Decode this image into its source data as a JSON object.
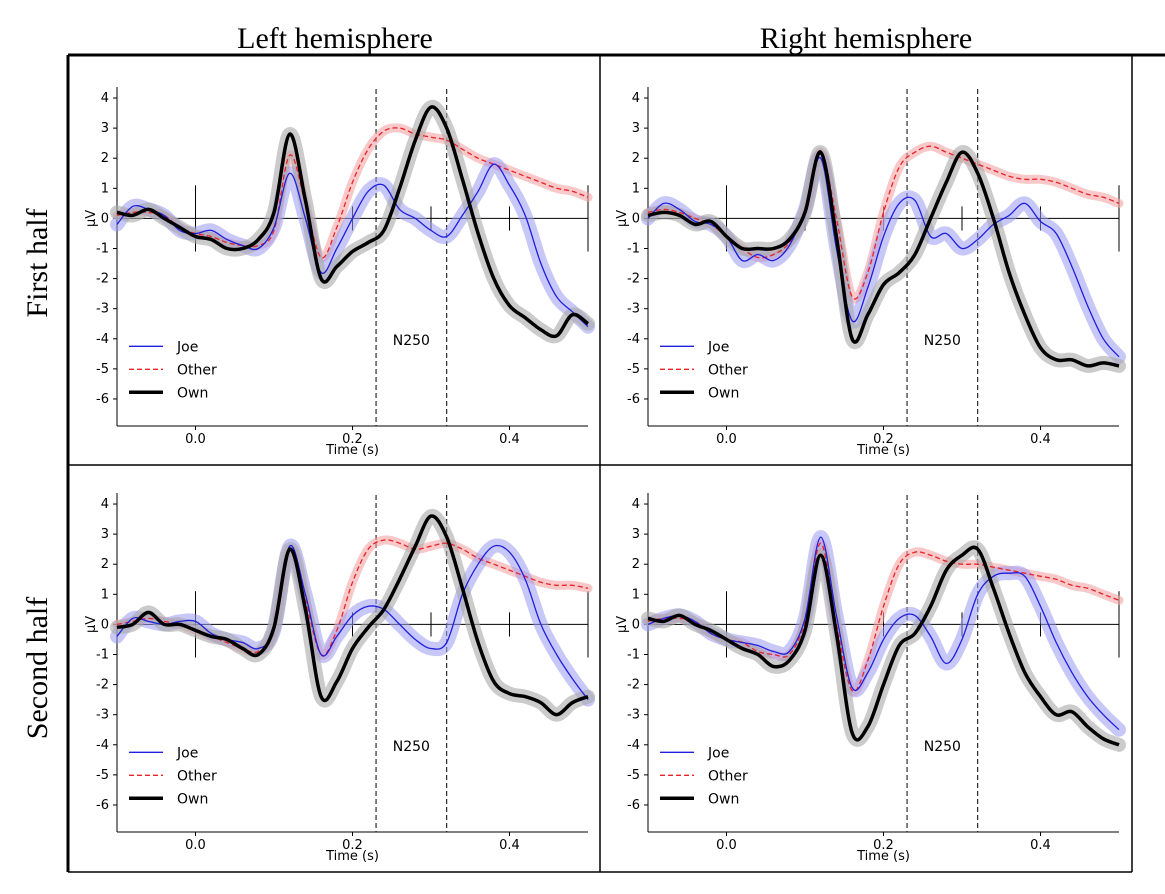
{
  "figure": {
    "col_titles": [
      "Left hemisphere",
      "Right hemisphere"
    ],
    "row_titles": [
      "First half",
      "Second half"
    ]
  },
  "colors": {
    "joe": "#1f1fe0",
    "joe_band": "#9b9bf2",
    "other": "#e8232a",
    "other_band": "#f5a3a3",
    "own": "#000000",
    "own_band": "#a8a8a8"
  },
  "chart_data": [
    {
      "type": "line",
      "panel": "Left hemisphere / First half",
      "xlabel": "Time (s)",
      "ylabel": "µV",
      "xlim": [
        -0.1,
        0.5
      ],
      "ylim": [
        -6.3,
        4.3
      ],
      "xticks": [
        "0.0",
        "0.2",
        "0.4"
      ],
      "yticks": [
        "-6",
        "-5",
        "-4",
        "-3",
        "-2",
        "-1",
        "0",
        "1",
        "2",
        "3",
        "4"
      ],
      "window": [
        0.23,
        0.32
      ],
      "annotation": "N250",
      "legend": [
        "Joe",
        "Other",
        "Own"
      ],
      "series": [
        {
          "name": "Joe",
          "x": [
            -0.1,
            -0.08,
            -0.06,
            -0.04,
            -0.02,
            0.0,
            0.02,
            0.04,
            0.06,
            0.08,
            0.1,
            0.12,
            0.14,
            0.16,
            0.18,
            0.2,
            0.22,
            0.24,
            0.26,
            0.28,
            0.3,
            0.32,
            0.34,
            0.36,
            0.38,
            0.4,
            0.42,
            0.44,
            0.46,
            0.48,
            0.5
          ],
          "y": [
            -0.2,
            0.4,
            0.3,
            0.1,
            -0.4,
            -0.5,
            -0.4,
            -0.7,
            -0.9,
            -1.0,
            -0.3,
            1.5,
            0.0,
            -1.8,
            -1.0,
            0.0,
            0.9,
            1.1,
            0.3,
            0.0,
            -0.4,
            -0.6,
            0.1,
            0.9,
            1.8,
            1.1,
            0.1,
            -1.5,
            -2.6,
            -3.1,
            -3.6
          ]
        },
        {
          "name": "Other",
          "x": [
            -0.1,
            -0.08,
            -0.06,
            -0.04,
            -0.02,
            0.0,
            0.02,
            0.04,
            0.06,
            0.08,
            0.1,
            0.12,
            0.14,
            0.16,
            0.18,
            0.2,
            0.22,
            0.24,
            0.26,
            0.28,
            0.3,
            0.32,
            0.34,
            0.36,
            0.38,
            0.4,
            0.42,
            0.44,
            0.46,
            0.48,
            0.5
          ],
          "y": [
            0.1,
            0.2,
            0.2,
            0.1,
            -0.3,
            -0.5,
            -0.6,
            -0.8,
            -0.9,
            -0.9,
            -0.4,
            2.1,
            0.5,
            -1.3,
            -0.3,
            1.2,
            2.3,
            2.9,
            3.0,
            2.8,
            2.7,
            2.6,
            2.3,
            2.0,
            1.8,
            1.6,
            1.4,
            1.2,
            1.0,
            0.9,
            0.7
          ]
        },
        {
          "name": "Own",
          "x": [
            -0.1,
            -0.08,
            -0.06,
            -0.04,
            -0.02,
            0.0,
            0.02,
            0.04,
            0.06,
            0.08,
            0.1,
            0.12,
            0.14,
            0.16,
            0.18,
            0.2,
            0.22,
            0.24,
            0.26,
            0.28,
            0.3,
            0.32,
            0.34,
            0.36,
            0.38,
            0.4,
            0.42,
            0.44,
            0.46,
            0.48,
            0.5
          ],
          "y": [
            0.2,
            0.1,
            0.3,
            0.0,
            -0.3,
            -0.6,
            -0.7,
            -1.0,
            -1.0,
            -0.7,
            0.2,
            2.8,
            0.6,
            -2.0,
            -1.6,
            -1.1,
            -0.8,
            -0.4,
            1.0,
            2.6,
            3.7,
            3.0,
            1.3,
            -0.5,
            -2.0,
            -2.9,
            -3.3,
            -3.7,
            -3.9,
            -3.2,
            -3.5
          ]
        }
      ]
    },
    {
      "type": "line",
      "panel": "Right hemisphere / First half",
      "xlabel": "Time (s)",
      "ylabel": "µV",
      "xlim": [
        -0.1,
        0.5
      ],
      "ylim": [
        -6.3,
        4.3
      ],
      "xticks": [
        "0.0",
        "0.2",
        "0.4"
      ],
      "yticks": [
        "-6",
        "-5",
        "-4",
        "-3",
        "-2",
        "-1",
        "0",
        "1",
        "2",
        "3",
        "4"
      ],
      "window": [
        0.23,
        0.32
      ],
      "annotation": "N250",
      "legend": [
        "Joe",
        "Other",
        "Own"
      ],
      "series": [
        {
          "name": "Joe",
          "x": [
            -0.1,
            -0.08,
            -0.06,
            -0.04,
            -0.02,
            0.0,
            0.02,
            0.04,
            0.06,
            0.08,
            0.1,
            0.12,
            0.14,
            0.16,
            0.18,
            0.2,
            0.22,
            0.24,
            0.26,
            0.28,
            0.3,
            0.32,
            0.34,
            0.36,
            0.38,
            0.4,
            0.42,
            0.44,
            0.46,
            0.48,
            0.5
          ],
          "y": [
            0.0,
            0.5,
            0.3,
            -0.1,
            -0.2,
            -0.6,
            -1.4,
            -1.2,
            -1.4,
            -0.9,
            0.3,
            2.0,
            -1.0,
            -3.4,
            -2.3,
            -0.6,
            0.5,
            0.6,
            -0.6,
            -0.5,
            -1.0,
            -0.7,
            -0.2,
            0.1,
            0.5,
            -0.1,
            -0.5,
            -1.6,
            -2.9,
            -4.0,
            -4.6
          ]
        },
        {
          "name": "Other",
          "x": [
            -0.1,
            -0.08,
            -0.06,
            -0.04,
            -0.02,
            0.0,
            0.02,
            0.04,
            0.06,
            0.08,
            0.1,
            0.12,
            0.14,
            0.16,
            0.18,
            0.2,
            0.22,
            0.24,
            0.26,
            0.28,
            0.3,
            0.32,
            0.34,
            0.36,
            0.38,
            0.4,
            0.42,
            0.44,
            0.46,
            0.48,
            0.5
          ],
          "y": [
            0.2,
            0.3,
            0.2,
            0.0,
            -0.2,
            -0.6,
            -1.0,
            -1.3,
            -1.2,
            -0.8,
            0.2,
            2.2,
            0.0,
            -2.6,
            -1.8,
            0.2,
            1.7,
            2.2,
            2.4,
            2.2,
            2.0,
            1.8,
            1.6,
            1.4,
            1.3,
            1.3,
            1.2,
            1.0,
            0.8,
            0.7,
            0.5
          ]
        },
        {
          "name": "Own",
          "x": [
            -0.1,
            -0.08,
            -0.06,
            -0.04,
            -0.02,
            0.0,
            0.02,
            0.04,
            0.06,
            0.08,
            0.1,
            0.12,
            0.14,
            0.16,
            0.18,
            0.2,
            0.22,
            0.24,
            0.26,
            0.28,
            0.3,
            0.32,
            0.34,
            0.36,
            0.38,
            0.4,
            0.42,
            0.44,
            0.46,
            0.48,
            0.5
          ],
          "y": [
            0.1,
            0.2,
            0.1,
            -0.2,
            -0.1,
            -0.6,
            -1.0,
            -1.0,
            -1.0,
            -0.7,
            0.2,
            2.2,
            -0.6,
            -4.0,
            -3.2,
            -2.2,
            -1.8,
            -1.2,
            0.0,
            1.2,
            2.2,
            1.5,
            0.0,
            -1.8,
            -3.2,
            -4.3,
            -4.7,
            -4.7,
            -4.9,
            -4.8,
            -4.9
          ]
        }
      ]
    },
    {
      "type": "line",
      "panel": "Left hemisphere / Second half",
      "xlabel": "Time (s)",
      "ylabel": "µV",
      "xlim": [
        -0.1,
        0.5
      ],
      "ylim": [
        -6.3,
        4.3
      ],
      "xticks": [
        "0.0",
        "0.2",
        "0.4"
      ],
      "yticks": [
        "-6",
        "-5",
        "-4",
        "-3",
        "-2",
        "-1",
        "0",
        "1",
        "2",
        "3",
        "4"
      ],
      "window": [
        0.23,
        0.32
      ],
      "annotation": "N250",
      "legend": [
        "Joe",
        "Other",
        "Own"
      ],
      "series": [
        {
          "name": "Joe",
          "x": [
            -0.1,
            -0.08,
            -0.06,
            -0.04,
            -0.02,
            0.0,
            0.02,
            0.04,
            0.06,
            0.08,
            0.1,
            0.12,
            0.14,
            0.16,
            0.18,
            0.2,
            0.22,
            0.24,
            0.26,
            0.28,
            0.3,
            0.32,
            0.34,
            0.36,
            0.38,
            0.4,
            0.42,
            0.44,
            0.46,
            0.48,
            0.5
          ],
          "y": [
            -0.4,
            0.2,
            0.1,
            0.0,
            0.1,
            0.1,
            -0.3,
            -0.5,
            -0.6,
            -0.8,
            -0.2,
            2.6,
            1.0,
            -1.0,
            -0.4,
            0.3,
            0.6,
            0.5,
            0.0,
            -0.5,
            -0.8,
            -0.6,
            1.0,
            2.0,
            2.6,
            2.4,
            1.5,
            0.0,
            -1.0,
            -1.8,
            -2.5
          ]
        },
        {
          "name": "Other",
          "x": [
            -0.1,
            -0.08,
            -0.06,
            -0.04,
            -0.02,
            0.0,
            0.02,
            0.04,
            0.06,
            0.08,
            0.1,
            0.12,
            0.14,
            0.16,
            0.18,
            0.2,
            0.22,
            0.24,
            0.26,
            0.28,
            0.3,
            0.32,
            0.34,
            0.36,
            0.38,
            0.4,
            0.42,
            0.44,
            0.46,
            0.48,
            0.5
          ],
          "y": [
            0.0,
            0.1,
            0.2,
            0.1,
            0.0,
            -0.2,
            -0.4,
            -0.6,
            -0.8,
            -0.9,
            -0.2,
            2.5,
            0.8,
            -1.0,
            -0.2,
            1.4,
            2.5,
            2.8,
            2.7,
            2.5,
            2.6,
            2.7,
            2.5,
            2.2,
            2.0,
            1.8,
            1.6,
            1.4,
            1.3,
            1.3,
            1.2
          ]
        },
        {
          "name": "Own",
          "x": [
            -0.1,
            -0.08,
            -0.06,
            -0.04,
            -0.02,
            0.0,
            0.02,
            0.04,
            0.06,
            0.08,
            0.1,
            0.12,
            0.14,
            0.16,
            0.18,
            0.2,
            0.22,
            0.24,
            0.26,
            0.28,
            0.3,
            0.32,
            0.34,
            0.36,
            0.38,
            0.4,
            0.42,
            0.44,
            0.46,
            0.48,
            0.5
          ],
          "y": [
            -0.1,
            0.0,
            0.4,
            0.0,
            0.0,
            -0.2,
            -0.4,
            -0.5,
            -0.8,
            -1.0,
            -0.1,
            2.5,
            0.5,
            -2.4,
            -1.9,
            -0.8,
            -0.1,
            0.5,
            1.5,
            2.6,
            3.6,
            2.9,
            1.2,
            -0.6,
            -1.9,
            -2.3,
            -2.4,
            -2.6,
            -3.0,
            -2.6,
            -2.4
          ]
        }
      ]
    },
    {
      "type": "line",
      "panel": "Right hemisphere / Second half",
      "xlabel": "Time (s)",
      "ylabel": "µV",
      "xlim": [
        -0.1,
        0.5
      ],
      "ylim": [
        -6.3,
        4.3
      ],
      "xticks": [
        "0.0",
        "0.2",
        "0.4"
      ],
      "yticks": [
        "-6",
        "-5",
        "-4",
        "-3",
        "-2",
        "-1",
        "0",
        "1",
        "2",
        "3",
        "4"
      ],
      "window": [
        0.23,
        0.32
      ],
      "annotation": "N250",
      "legend": [
        "Joe",
        "Other",
        "Own"
      ],
      "series": [
        {
          "name": "Joe",
          "x": [
            -0.1,
            -0.08,
            -0.06,
            -0.04,
            -0.02,
            0.0,
            0.02,
            0.04,
            0.06,
            0.08,
            0.1,
            0.12,
            0.14,
            0.16,
            0.18,
            0.2,
            0.22,
            0.24,
            0.26,
            0.28,
            0.3,
            0.32,
            0.34,
            0.36,
            0.38,
            0.4,
            0.42,
            0.44,
            0.46,
            0.48,
            0.5
          ],
          "y": [
            0.0,
            0.2,
            0.3,
            0.1,
            -0.3,
            -0.5,
            -0.6,
            -0.7,
            -0.9,
            -0.9,
            0.2,
            2.9,
            0.3,
            -2.1,
            -1.6,
            -0.5,
            0.2,
            0.3,
            -0.4,
            -1.3,
            -0.5,
            1.0,
            1.6,
            1.7,
            1.6,
            0.6,
            -0.6,
            -1.6,
            -2.4,
            -3.0,
            -3.5
          ]
        },
        {
          "name": "Other",
          "x": [
            -0.1,
            -0.08,
            -0.06,
            -0.04,
            -0.02,
            0.0,
            0.02,
            0.04,
            0.06,
            0.08,
            0.1,
            0.12,
            0.14,
            0.16,
            0.18,
            0.2,
            0.22,
            0.24,
            0.26,
            0.28,
            0.3,
            0.32,
            0.34,
            0.36,
            0.38,
            0.4,
            0.42,
            0.44,
            0.46,
            0.48,
            0.5
          ],
          "y": [
            0.1,
            0.2,
            0.2,
            0.1,
            -0.3,
            -0.5,
            -0.6,
            -0.9,
            -1.0,
            -1.0,
            0.1,
            2.7,
            0.0,
            -2.2,
            -1.2,
            0.6,
            2.0,
            2.4,
            2.3,
            2.1,
            2.0,
            2.0,
            1.9,
            1.8,
            1.7,
            1.6,
            1.5,
            1.3,
            1.2,
            1.0,
            0.8
          ]
        },
        {
          "name": "Own",
          "x": [
            -0.1,
            -0.08,
            -0.06,
            -0.04,
            -0.02,
            0.0,
            0.02,
            0.04,
            0.06,
            0.08,
            0.1,
            0.12,
            0.14,
            0.16,
            0.18,
            0.2,
            0.22,
            0.24,
            0.26,
            0.28,
            0.3,
            0.32,
            0.34,
            0.36,
            0.38,
            0.4,
            0.42,
            0.44,
            0.46,
            0.48,
            0.5
          ],
          "y": [
            0.2,
            0.1,
            0.3,
            0.0,
            -0.2,
            -0.5,
            -0.8,
            -1.0,
            -1.4,
            -1.2,
            -0.2,
            2.3,
            -0.3,
            -3.6,
            -3.4,
            -2.0,
            -0.7,
            -0.3,
            0.6,
            1.8,
            2.3,
            2.5,
            1.2,
            -0.3,
            -1.6,
            -2.4,
            -3.0,
            -2.9,
            -3.4,
            -3.8,
            -4.0
          ]
        }
      ]
    }
  ]
}
